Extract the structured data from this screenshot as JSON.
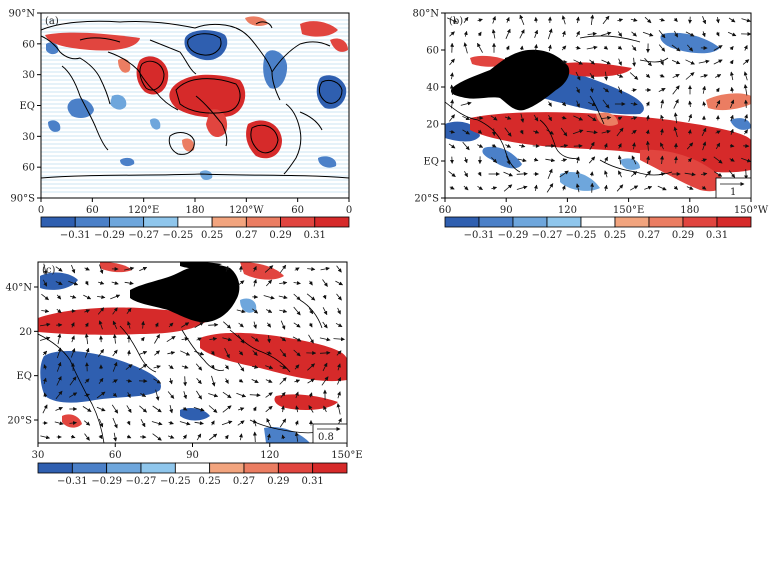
{
  "colors": {
    "neg_strong": "#2f5fb0",
    "neg_mid": "#4b80c8",
    "neg_light": "#6ea6dc",
    "neg_pale": "#8fc6ec",
    "pos_pale": "#f2a47e",
    "pos_light": "#eb7d62",
    "pos_mid": "#e1453f",
    "pos_strong": "#d62a2a",
    "land": "#000000",
    "hatch": "#9cc9e8"
  },
  "colorbar": {
    "labels": [
      "−0.31",
      "−0.29",
      "−0.27",
      "−0.25",
      "0.25",
      "0.27",
      "0.29",
      "0.31"
    ]
  },
  "chart_data": [
    {
      "panel": "(a)",
      "type": "heatmap",
      "x_ticks": [
        "0",
        "60",
        "120°E",
        "180",
        "120°W",
        "60",
        "0"
      ],
      "y_ticks": [
        "90°N",
        "60",
        "30",
        "EQ",
        "30",
        "60",
        "90°S"
      ],
      "colorbar_labels": [
        "−0.31",
        "−0.29",
        "−0.27",
        "−0.25",
        "0.25",
        "0.27",
        "0.29",
        "0.31"
      ]
    },
    {
      "panel": "(b)",
      "type": "heatmap",
      "x_ticks": [
        "60",
        "90",
        "120",
        "150°E",
        "180",
        "150°W"
      ],
      "y_ticks": [
        "80°N",
        "60",
        "40",
        "20",
        "EQ",
        "20°S"
      ],
      "reference_vector": "1",
      "colorbar_labels": [
        "−0.31",
        "−0.29",
        "−0.27",
        "−0.25",
        "0.25",
        "0.27",
        "0.29",
        "0.31"
      ]
    },
    {
      "panel": "(c)",
      "type": "heatmap",
      "x_ticks": [
        "30",
        "60",
        "90",
        "120",
        "150°E"
      ],
      "y_ticks": [
        "40°N",
        "20",
        "EQ",
        "20°S"
      ],
      "reference_vector": "0.8",
      "colorbar_labels": [
        "−0.31",
        "−0.29",
        "−0.27",
        "−0.25",
        "0.25",
        "0.27",
        "0.29",
        "0.31"
      ]
    }
  ]
}
